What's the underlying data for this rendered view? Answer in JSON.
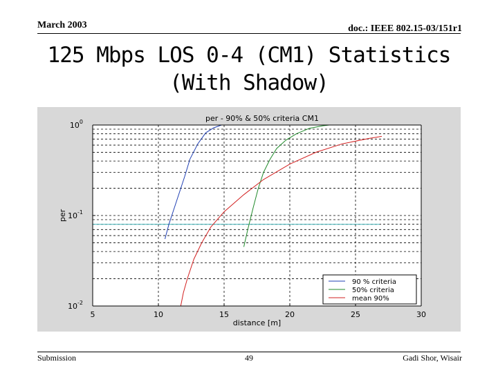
{
  "header": {
    "date": "March 2003",
    "doc_id": "doc.: IEEE 802.15-03/151r1"
  },
  "slide": {
    "title_line1": "125 Mbps LOS 0-4 (CM1) Statistics",
    "title_line2": "(With Shadow)"
  },
  "footer": {
    "left": "Submission",
    "page": "49",
    "author": "Gadi Shor, Wisair"
  },
  "colors": {
    "plot_bg": "#d8d8d8",
    "series_90": "#1f3fb3",
    "series_50": "#1f8a2a",
    "series_mean": "#d21f1f",
    "threshold": "#3fb3b8"
  },
  "chart_data": {
    "type": "line",
    "title": "per - 90% & 50% criteria CM1",
    "xlabel": "distance [m]",
    "ylabel": "per",
    "xlim": [
      5,
      30
    ],
    "ylim": [
      0.01,
      1
    ],
    "yscale": "log",
    "x_ticks": [
      5,
      10,
      15,
      20,
      25,
      30
    ],
    "y_ticks": [
      {
        "value": 1,
        "base": "10",
        "exp": "0"
      },
      {
        "value": 0.1,
        "base": "10",
        "exp": "-1"
      },
      {
        "value": 0.01,
        "base": "10",
        "exp": "-2"
      }
    ],
    "grid": "on",
    "legend_position": "bottom-right",
    "threshold": 0.08,
    "series": [
      {
        "name": "90 % criteria",
        "color": "#1f3fb3",
        "x": [
          10.5,
          10.8,
          11.2,
          11.6,
          12.0,
          12.4,
          13.0,
          13.6,
          14.2,
          14.8
        ],
        "y": [
          0.055,
          0.08,
          0.12,
          0.18,
          0.27,
          0.42,
          0.62,
          0.82,
          0.93,
          1.0
        ]
      },
      {
        "name": "50% criteria",
        "color": "#1f8a2a",
        "x": [
          16.5,
          16.8,
          17.2,
          17.6,
          18.0,
          18.5,
          19.0,
          19.7,
          20.5,
          21.5,
          22.5,
          23.0
        ],
        "y": [
          0.045,
          0.07,
          0.12,
          0.2,
          0.3,
          0.42,
          0.55,
          0.68,
          0.8,
          0.92,
          0.98,
          1.0
        ]
      },
      {
        "name": "mean 90%",
        "color": "#d21f1f",
        "x": [
          11.7,
          11.9,
          12.2,
          12.7,
          13.3,
          14.0,
          15.0,
          16.5,
          18.0,
          20.0,
          22.0,
          24.0,
          26.0,
          27.0
        ],
        "y": [
          0.01,
          0.014,
          0.02,
          0.033,
          0.05,
          0.075,
          0.11,
          0.17,
          0.25,
          0.37,
          0.5,
          0.62,
          0.71,
          0.75
        ]
      }
    ]
  }
}
